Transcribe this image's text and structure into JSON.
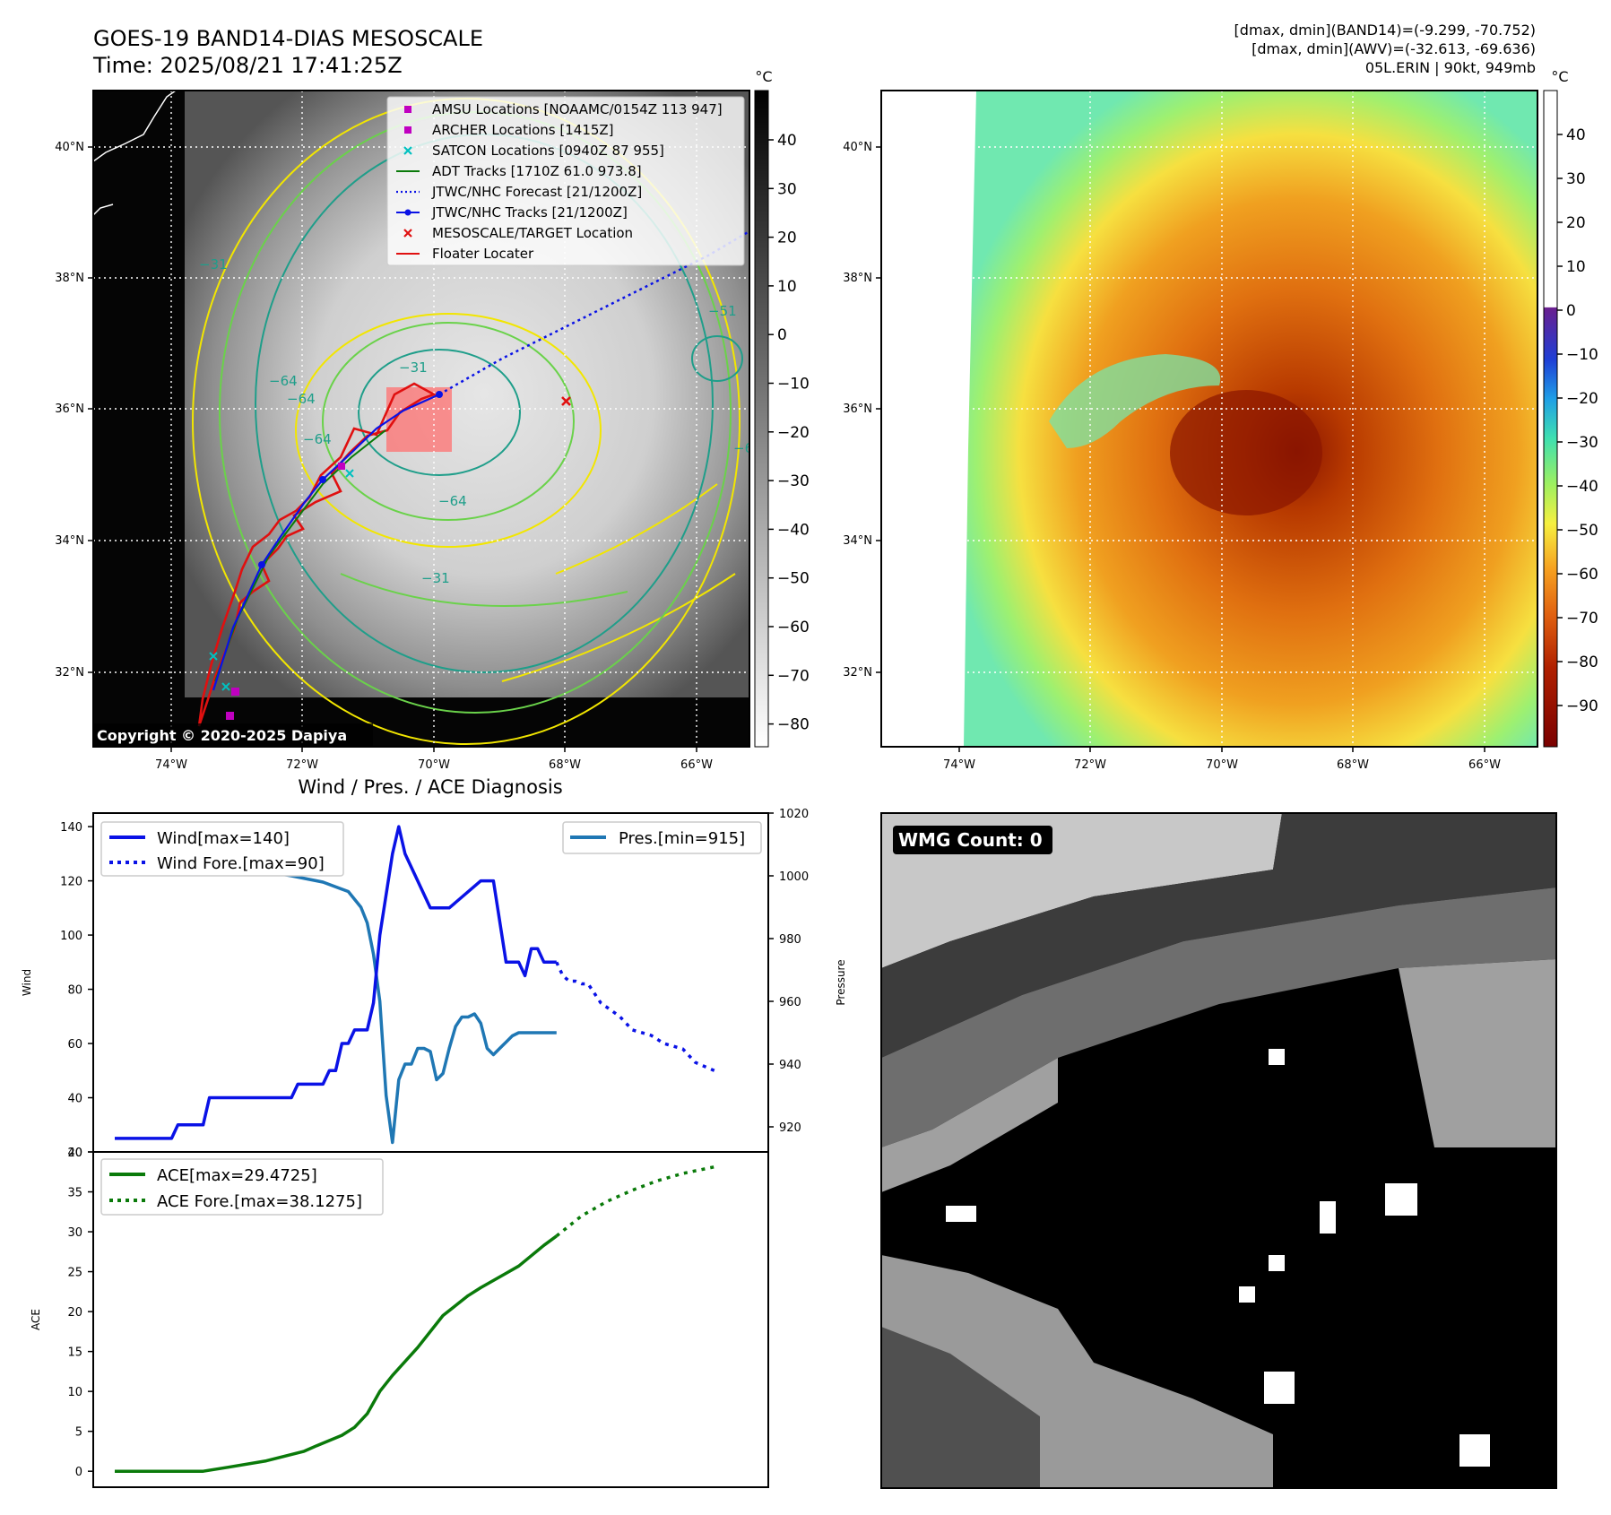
{
  "header": {
    "title_line1": "GOES-19 BAND14-DIAS MESOSCALE",
    "title_line2": "Time: 2025/08/21 17:41:25Z",
    "stats_line1": "[dmax, dmin](BAND14)=(-9.299, -70.752)",
    "stats_line2": "[dmax, dmin](AWV)=(-32.613, -69.636)",
    "stats_line3": "05L.ERIN | 90kt, 949mb"
  },
  "copyright": "Copyright © 2020-2025 Dapiya",
  "wmg_label": "WMG Count: 0",
  "colors": {
    "wind": "#0a12e6",
    "pressure": "#1f77b4",
    "ace": "#0a7a0a",
    "floater": "#e01010",
    "contour_yellow": "#f2e600",
    "contour_green": "#6ad24a",
    "contour_teal": "#1f9e8a"
  },
  "panel1": {
    "lon_labels": [
      "74°W",
      "72°W",
      "70°W",
      "68°W",
      "66°W"
    ],
    "lat_labels": [
      "40°N",
      "38°N",
      "36°N",
      "34°N",
      "32°N"
    ],
    "colorbar_unit": "°C",
    "colorbar_ticks": [
      "40",
      "30",
      "20",
      "10",
      "0",
      "−10",
      "−20",
      "−30",
      "−40",
      "−50",
      "−60",
      "−70",
      "−80"
    ],
    "contour_labels": [
      "−31",
      "−64",
      "−64",
      "−64",
      "−31",
      "−51",
      "−64",
      "−31",
      "−64"
    ],
    "legend": [
      {
        "label": "AMSU Locations [NOAAMC/0154Z 113 947]",
        "marker": "square",
        "color": "#c000c0"
      },
      {
        "label": "ARCHER Locations [1415Z]",
        "marker": "square",
        "color": "#c000c0"
      },
      {
        "label": "SATCON Locations [0940Z 87 955]",
        "marker": "x",
        "color": "#00c0c0"
      },
      {
        "label": "ADT Tracks [1710Z 61.0 973.8]",
        "marker": "line",
        "color": "#0a7a0a"
      },
      {
        "label": "JTWC/NHC Forecast [21/1200Z]",
        "marker": "dotted",
        "color": "#0a12e6"
      },
      {
        "label": "JTWC/NHC Tracks [21/1200Z]",
        "marker": "dotline",
        "color": "#0a12e6"
      },
      {
        "label": "MESOSCALE/TARGET Location",
        "marker": "x",
        "color": "#e01010"
      },
      {
        "label": "Floater Locater",
        "marker": "line",
        "color": "#e01010"
      }
    ]
  },
  "panel2": {
    "lon_labels": [
      "74°W",
      "72°W",
      "70°W",
      "68°W",
      "66°W"
    ],
    "lat_labels": [
      "40°N",
      "38°N",
      "36°N",
      "34°N",
      "32°N"
    ],
    "colorbar_unit": "°C",
    "colorbar_ticks": [
      "40",
      "30",
      "20",
      "10",
      "0",
      "−10",
      "−20",
      "−30",
      "−40",
      "−50",
      "−60",
      "−70",
      "−80",
      "−90"
    ]
  },
  "chart_data": [
    {
      "type": "line",
      "title": "Wind / Pres. / ACE Diagnosis",
      "ylabel": "Wind",
      "ylabel_right": "Pressure",
      "ylim": [
        20,
        145
      ],
      "ylim_right": [
        912,
        1020
      ],
      "yticks": [
        "140",
        "120",
        "100",
        "80",
        "60",
        "40",
        "20"
      ],
      "yticks_right": [
        "1020",
        "1000",
        "980",
        "960",
        "940",
        "920"
      ],
      "x_range": [
        0,
        100
      ],
      "legend_left": [
        "Wind[max=140]",
        "Wind Fore.[max=90]"
      ],
      "legend_right": [
        "Pres.[min=915]"
      ],
      "series": [
        {
          "name": "Wind[max=140]",
          "style": "solid",
          "x": [
            0,
            9,
            10,
            14,
            15,
            16,
            17,
            28,
            29,
            33,
            34,
            35,
            36,
            37,
            38,
            40,
            41,
            42,
            44,
            45,
            46,
            50,
            52,
            53,
            58,
            60,
            62,
            63,
            64,
            65,
            66,
            67,
            68,
            69,
            70
          ],
          "y": [
            25,
            25,
            30,
            30,
            40,
            40,
            40,
            40,
            45,
            45,
            50,
            50,
            60,
            60,
            65,
            65,
            75,
            100,
            130,
            140,
            130,
            110,
            110,
            110,
            120,
            120,
            90,
            90,
            90,
            85,
            95,
            95,
            90,
            90,
            90
          ]
        },
        {
          "name": "Wind Fore.[max=90]",
          "style": "dotted",
          "x": [
            70,
            71,
            72,
            73,
            74,
            75,
            77,
            80,
            82,
            85,
            87,
            90,
            92,
            95
          ],
          "y": [
            90,
            85,
            83,
            83,
            82,
            82,
            75,
            70,
            65,
            63,
            60,
            58,
            53,
            50
          ]
        },
        {
          "name": "Pres.[min=915]",
          "axis": "right",
          "style": "solid",
          "x": [
            0,
            2,
            4,
            8,
            12,
            17,
            22,
            28,
            33,
            37,
            39,
            40,
            41,
            42,
            43,
            44,
            45,
            46,
            47,
            48,
            49,
            50,
            51,
            52,
            53,
            54,
            55,
            56,
            57,
            58,
            59,
            60,
            61,
            62,
            63,
            64,
            65,
            66,
            67,
            68,
            69,
            70
          ],
          "y": [
            1013,
            1008,
            1006,
            1005,
            1003,
            1004,
            1002,
            1000,
            998,
            995,
            990,
            985,
            975,
            960,
            930,
            915,
            935,
            940,
            940,
            945,
            945,
            944,
            935,
            937,
            945,
            952,
            955,
            955,
            956,
            953,
            945,
            943,
            945,
            947,
            949,
            950,
            950,
            950,
            950,
            950,
            950,
            950
          ]
        }
      ]
    },
    {
      "type": "line",
      "ylabel": "ACE",
      "ylim": [
        -2,
        40
      ],
      "yticks": [
        "40",
        "35",
        "30",
        "25",
        "20",
        "15",
        "10",
        "5",
        "0"
      ],
      "x_range": [
        0,
        100
      ],
      "legend": [
        "ACE[max=29.4725]",
        "ACE Fore.[max=38.1275]"
      ],
      "series": [
        {
          "name": "ACE[max=29.4725]",
          "style": "solid",
          "x": [
            0,
            14,
            18,
            24,
            30,
            32,
            36,
            38,
            40,
            42,
            44,
            48,
            52,
            56,
            58,
            62,
            64,
            66,
            68,
            70
          ],
          "y": [
            0,
            0,
            0.5,
            1.3,
            2.5,
            3.2,
            4.5,
            5.5,
            7.2,
            10.0,
            12.0,
            15.5,
            19.5,
            22.0,
            23.0,
            24.8,
            25.7,
            27.0,
            28.3,
            29.47
          ]
        },
        {
          "name": "ACE Fore.[max=38.1275]",
          "style": "dotted",
          "x": [
            70,
            74,
            78,
            82,
            86,
            90,
            95
          ],
          "y": [
            29.47,
            32,
            33.8,
            35.2,
            36.4,
            37.3,
            38.13
          ]
        }
      ]
    }
  ]
}
